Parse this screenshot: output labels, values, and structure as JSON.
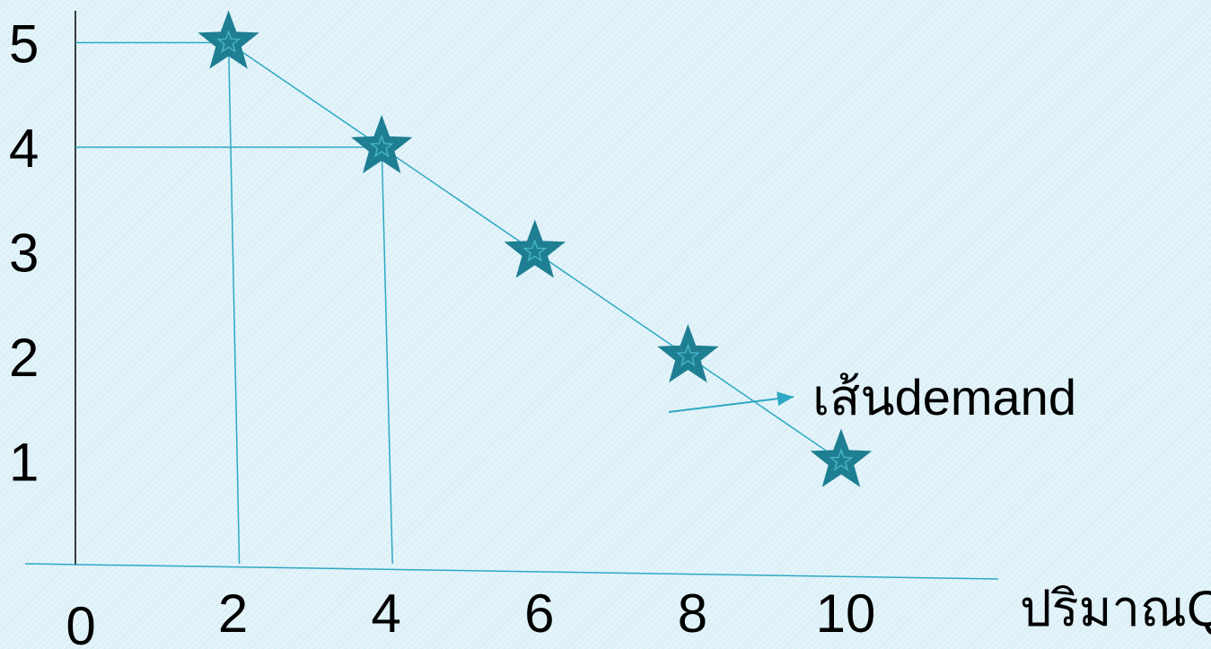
{
  "chart_data": {
    "type": "scatter",
    "x": [
      2,
      4,
      6,
      8,
      10
    ],
    "y": [
      5,
      4,
      3,
      2,
      1
    ],
    "x_ticks": [
      "0",
      "2",
      "4",
      "6",
      "8",
      "10"
    ],
    "y_ticks": [
      "1",
      "2",
      "3",
      "4",
      "5"
    ],
    "xlabel": "ปริมาณQ",
    "ylabel": "",
    "marker": "star",
    "line_connected": true,
    "grid": false,
    "guides": [
      {
        "x": 2,
        "y": 5
      },
      {
        "x": 4,
        "y": 4
      }
    ],
    "annotation": {
      "text": "เส้นdemand",
      "arrow": true
    },
    "colors": {
      "marker": "#1e7e92",
      "marker_inner": "#46b4c8",
      "line": "#2ea8c4",
      "axis": "#000000",
      "arrow": "#2ea8c4"
    }
  }
}
